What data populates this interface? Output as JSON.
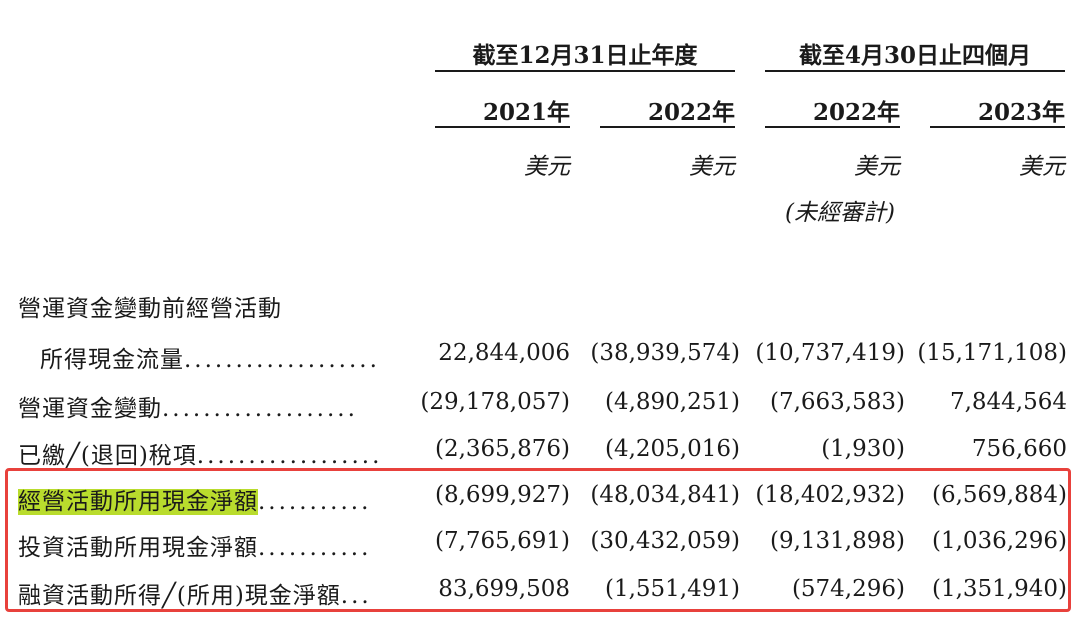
{
  "header": {
    "period_year": "截至12月31日止年度",
    "period_month": "截至4月30日止四個月",
    "years": [
      "2021年",
      "2022年",
      "2022年",
      "2023年"
    ],
    "units": [
      "美元",
      "美元",
      "美元",
      "美元"
    ],
    "unaudited": "(未經審計)"
  },
  "rows": [
    {
      "label_line1": "營運資金變動前經營活動",
      "label": "所得現金流量",
      "dots": "...................",
      "values": [
        "22,844,006",
        "(38,939,574)",
        "(10,737,419)",
        "(15,171,108)"
      ]
    },
    {
      "label": "營運資金變動",
      "dots": "...................",
      "values": [
        "(29,178,057)",
        "(4,890,251)",
        "(7,663,583)",
        "7,844,564"
      ]
    },
    {
      "label": "已繳╱(退回)稅項",
      "dots": "..................",
      "values": [
        "(2,365,876)",
        "(4,205,016)",
        "(1,930)",
        "756,660"
      ]
    },
    {
      "label": "經營活動所用現金淨額",
      "dots": "...........",
      "values": [
        "(8,699,927)",
        "(48,034,841)",
        "(18,402,932)",
        "(6,569,884)"
      ]
    },
    {
      "label": "投資活動所用現金淨額",
      "dots": "...........",
      "values": [
        "(7,765,691)",
        "(30,432,059)",
        "(9,131,898)",
        "(1,036,296)"
      ]
    },
    {
      "label": "融資活動所得╱(所用)現金淨額",
      "dots": "...",
      "values": [
        "83,699,508",
        "(1,551,491)",
        "(574,296)",
        "(1,351,940)"
      ]
    }
  ],
  "colors": {
    "highlight": "#b9dc2d",
    "box_border": "#e8413c",
    "text": "#1a1a1a"
  }
}
